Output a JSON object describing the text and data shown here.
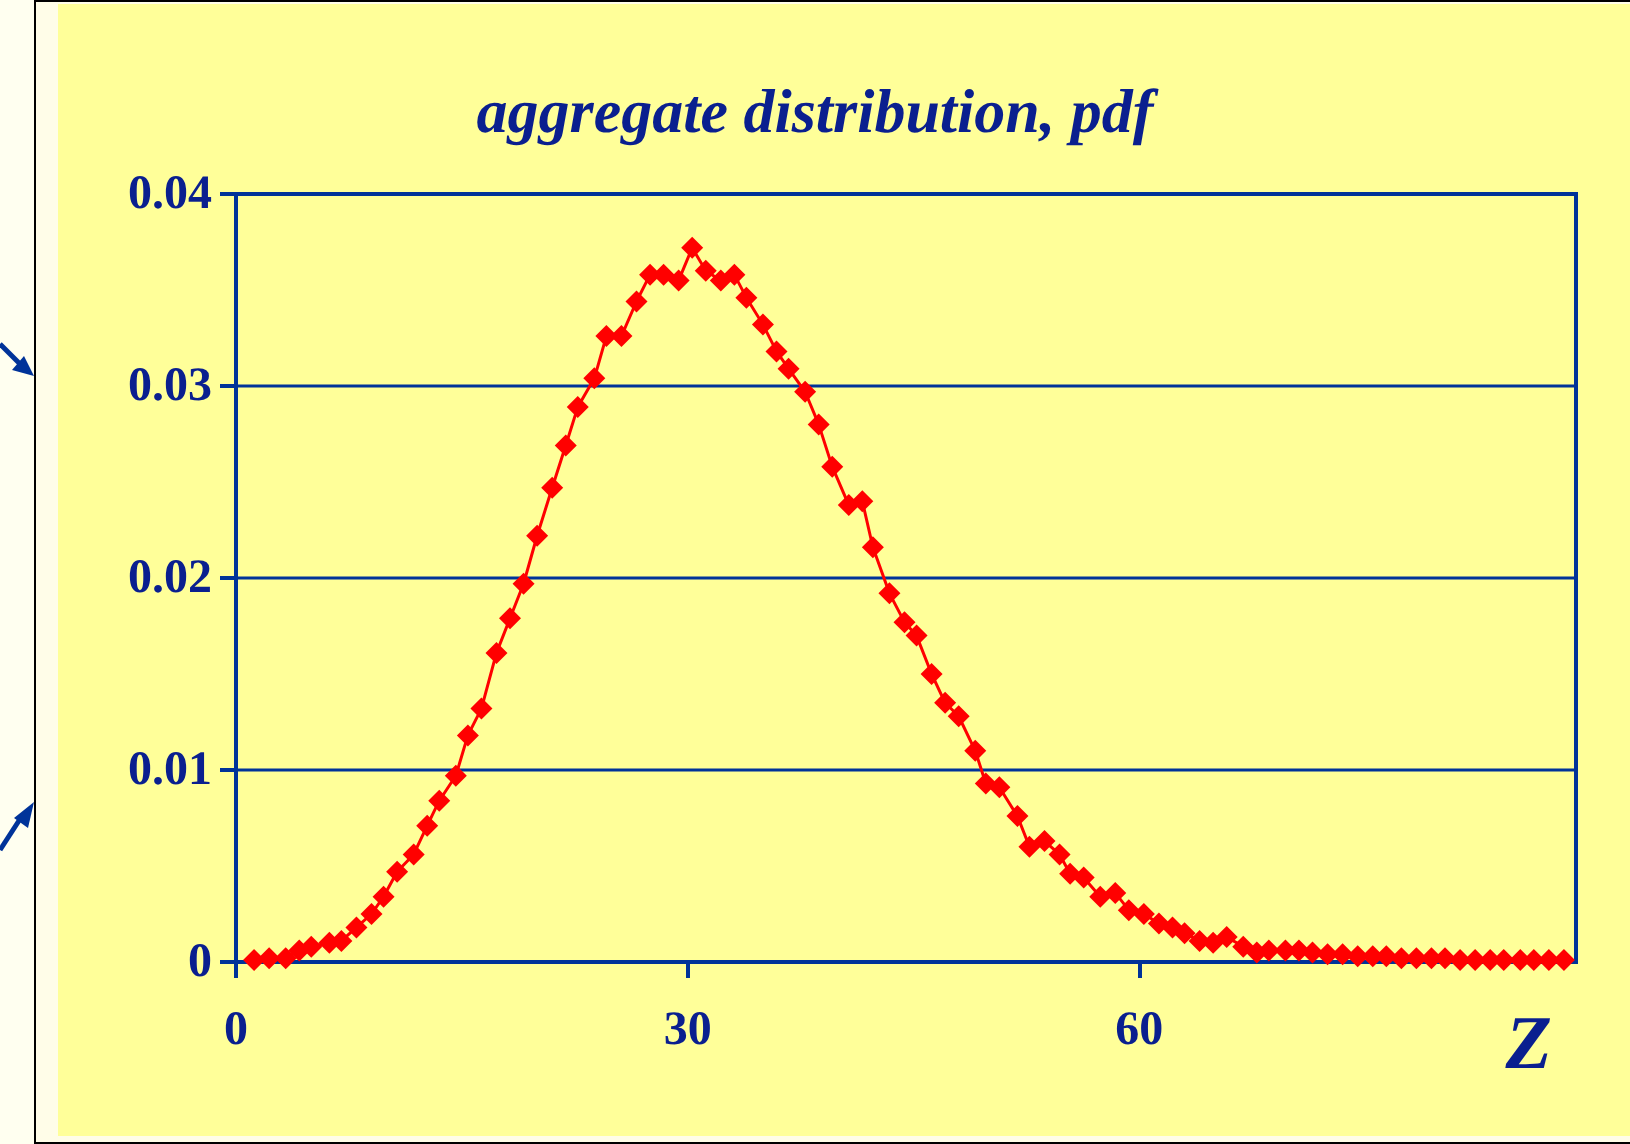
{
  "chart_data": {
    "type": "line",
    "title": "aggregate distribution, pdf",
    "xlabel": "Z",
    "x": [
      1.2,
      2.2,
      3.3,
      4.2,
      5.0,
      6.2,
      7.0,
      8.0,
      9.0,
      9.8,
      10.7,
      11.8,
      12.7,
      13.5,
      14.6,
      15.4,
      16.3,
      17.3,
      18.2,
      19.1,
      20.0,
      21.0,
      21.9,
      22.7,
      23.8,
      24.6,
      25.6,
      26.6,
      27.5,
      28.4,
      29.4,
      30.3,
      31.2,
      32.2,
      33.1,
      33.9,
      35.0,
      35.9,
      36.7,
      37.8,
      38.7,
      39.6,
      40.7,
      41.6,
      42.3,
      43.4,
      44.4,
      45.2,
      46.2,
      47.1,
      48.0,
      49.1,
      49.8,
      50.7,
      51.9,
      52.7,
      53.7,
      54.7,
      55.4,
      56.3,
      57.4,
      58.4,
      59.3,
      60.3,
      61.3,
      62.2,
      63.0,
      64.0,
      64.9,
      65.8,
      66.9,
      67.8,
      68.6,
      69.7,
      70.6,
      71.5,
      72.5,
      73.5,
      74.5,
      75.5,
      76.4,
      77.4,
      78.4,
      79.4,
      80.3,
      81.3,
      82.3,
      83.3,
      84.2,
      85.3,
      86.2,
      87.2,
      88.2
    ],
    "values": [
      0.0001,
      0.0002,
      0.0002,
      0.0006,
      0.0008,
      0.001,
      0.0011,
      0.0018,
      0.0025,
      0.0034,
      0.0047,
      0.0056,
      0.0071,
      0.0084,
      0.0097,
      0.0118,
      0.0132,
      0.0161,
      0.0179,
      0.0197,
      0.0222,
      0.0247,
      0.0269,
      0.0289,
      0.0304,
      0.0326,
      0.0326,
      0.0344,
      0.0358,
      0.0358,
      0.0355,
      0.0372,
      0.036,
      0.0355,
      0.0358,
      0.0346,
      0.0332,
      0.0318,
      0.0309,
      0.0297,
      0.028,
      0.0258,
      0.0238,
      0.024,
      0.0216,
      0.0192,
      0.0177,
      0.017,
      0.015,
      0.0135,
      0.0128,
      0.011,
      0.0093,
      0.0091,
      0.0076,
      0.006,
      0.0063,
      0.0056,
      0.0046,
      0.0044,
      0.0034,
      0.0036,
      0.0027,
      0.0025,
      0.002,
      0.0018,
      0.0015,
      0.0011,
      0.001,
      0.0013,
      0.0008,
      0.0005,
      0.0006,
      0.0006,
      0.0006,
      0.0005,
      0.0004,
      0.0004,
      0.0003,
      0.0003,
      0.0003,
      0.0002,
      0.0002,
      0.0002,
      0.0002,
      0.0001,
      0.0001,
      0.0001,
      0.0001,
      0.0001,
      0.0001,
      0.0001,
      0.0001
    ],
    "color": "#ff0000",
    "marker": "diamond",
    "line_style": "solid",
    "xlim": [
      0,
      89
    ],
    "xticks": [
      0,
      30,
      60
    ],
    "ylim": [
      0,
      0.04
    ],
    "yticks": [
      0,
      0.01,
      0.02,
      0.03,
      0.04
    ],
    "grid": "y"
  }
}
